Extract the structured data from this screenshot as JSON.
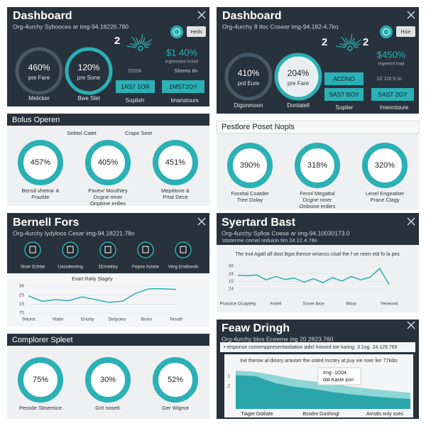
{
  "left_dashboard": {
    "title": "Dashboard",
    "subtitle": "Org-4urchy Sybooces ar img-94.18226.780",
    "badge": "Heds",
    "gauges": [
      {
        "value": "460%",
        "sub": "pre Fare",
        "label": "Melicker"
      },
      {
        "value": "120%",
        "sub": "pre Sone",
        "label": "Bwe Slet"
      }
    ],
    "counts": [
      "2"
    ],
    "stat": "SSSK",
    "kpi": "$1 40%",
    "kpi_note": "Ingremetnt Incted",
    "kpi_sub": "Sloens tin",
    "buttons": [
      "1AS7 1OR",
      "1MST2OY"
    ],
    "labels": [
      "Soplieh",
      "Imanstours"
    ]
  },
  "right_dashboard": {
    "title": "Dashboard",
    "subtitle": "Org-4urchy 8 tloc Cosear img-94.182-4.7ko",
    "badge": "Hsie",
    "gauges": [
      {
        "value": "410%",
        "sub": "prd Eure",
        "label": "Digonmoon"
      },
      {
        "value": "204%",
        "sub": "pre Fare",
        "label": "Dontatell"
      }
    ],
    "counts": [
      "2",
      "2"
    ],
    "stat": "10 10t 5 tn",
    "kpi": "$450%",
    "kpi_note": "Ingremnt Inad",
    "buttons": [
      "ACDNO",
      "SAST BOY",
      "SAST 2GY"
    ],
    "labels": [
      "Soplier",
      "Imenntoure"
    ]
  },
  "bolus": {
    "title": "Bolus Operen",
    "top_labels": [
      "Sebtel Catet",
      "Crape Seet"
    ],
    "rings": [
      {
        "value": "457%",
        "label": [
          "Bensil vhetrar &",
          "Prazble"
        ]
      },
      {
        "value": "405%",
        "label": [
          "Pavev/ Mouthley",
          "Dcgne rimer",
          "Onpbine enlles"
        ]
      },
      {
        "value": "451%",
        "label": [
          "Mepittone &",
          "Prtat Dece"
        ]
      }
    ]
  },
  "pestlore": {
    "title": "Pestlore Poset Nopls",
    "rings": [
      {
        "value": "390%",
        "label": [
          "Focetal Coatder",
          "Tree Dolay"
        ]
      },
      {
        "value": "318%",
        "label": [
          "Fennl Megattal",
          "Dcgne nmer",
          "Onbsine erdies"
        ]
      },
      {
        "value": "320%",
        "label": [
          "Lenel Engeatiter",
          "Prane Clagy"
        ]
      }
    ]
  },
  "bernell": {
    "title": "Bernell Fors",
    "subtitle": "Org-4urchy lydyloos Cesar img-94.18221.78o",
    "icons": [
      "Slcer Echtie",
      "Uasollecting",
      "1Emetitry",
      "Fepse Actate",
      "Verg Endtonds"
    ],
    "chart": {
      "title": "Exart Ratiy Slagey",
      "y_labels": [
        "36",
        "25",
        "15",
        "75"
      ],
      "x_labels": [
        "Tetoist",
        "Vlativ",
        "Enuby",
        "Sistyoeu",
        "Boon",
        "Tessth"
      ],
      "ylim": [
        0,
        100
      ],
      "values": [
        64,
        44,
        50,
        46,
        60,
        50,
        40,
        44,
        74,
        90,
        90,
        88
      ],
      "color": "#2ab0b5"
    }
  },
  "complorer": {
    "title": "Complorer Spleet",
    "rings": [
      {
        "value": "75%",
        "label": [
          "Pessde Sbsemice"
        ]
      },
      {
        "value": "30%",
        "label": [
          "Grit noseK"
        ]
      },
      {
        "value": "52%",
        "label": [
          "Ger Wignot"
        ]
      }
    ]
  },
  "syertard": {
    "title": "Syertard Bast",
    "subtitle": "Org-4urchy Sylloe Coese ar img-94.10030173.0",
    "note": "Iststerme comel reduion tim 24.12.4.78o",
    "chart": {
      "title": "The tnol Agatl alf dost Bgor.thence wriancu cisaf the f ve neen etd fo la pes",
      "y_labels": [
        "36",
        "24",
        "15",
        "24"
      ],
      "x_labels": [
        "Poaotce Dcaptely",
        "Astell",
        "Sowe.tbce",
        "Moor",
        "Yeneonit"
      ],
      "ylim": [
        0,
        100
      ],
      "values": [
        60,
        58,
        62,
        40,
        55,
        42,
        48,
        30,
        45,
        28,
        50,
        35,
        55,
        40,
        52,
        90,
        20
      ],
      "color": "#2ab0b5"
    }
  },
  "feaw": {
    "title": "Feaw Dringh",
    "subtitle": "Org-4urchy blos Eceeme ing 20 2823.780",
    "note": "• response comemppresentastiation adicl honord toe karing. 3.1og. 24.129.769",
    "chart": {
      "title": "Ine therow al diriory arauser the osted Incrtey at puy vie noer lier 77kibs",
      "tooltip": [
        "Img- 1G04.",
        "dat Kaste pon"
      ],
      "y_labels": [
        "1",
        "2"
      ],
      "x_labels": [
        "Tiagre Dotliate",
        "Bssdre Goshingl",
        "Amstls only sses"
      ],
      "ylim": [
        0,
        100
      ],
      "series": [
        {
          "color": "#8fd6d6",
          "values": [
            100,
            97,
            88,
            78,
            72,
            66,
            58,
            52,
            47,
            42
          ]
        },
        {
          "color": "#2aa6aa",
          "values": [
            88,
            86,
            68,
            58,
            52,
            44,
            38,
            33,
            29,
            26
          ]
        }
      ]
    }
  }
}
